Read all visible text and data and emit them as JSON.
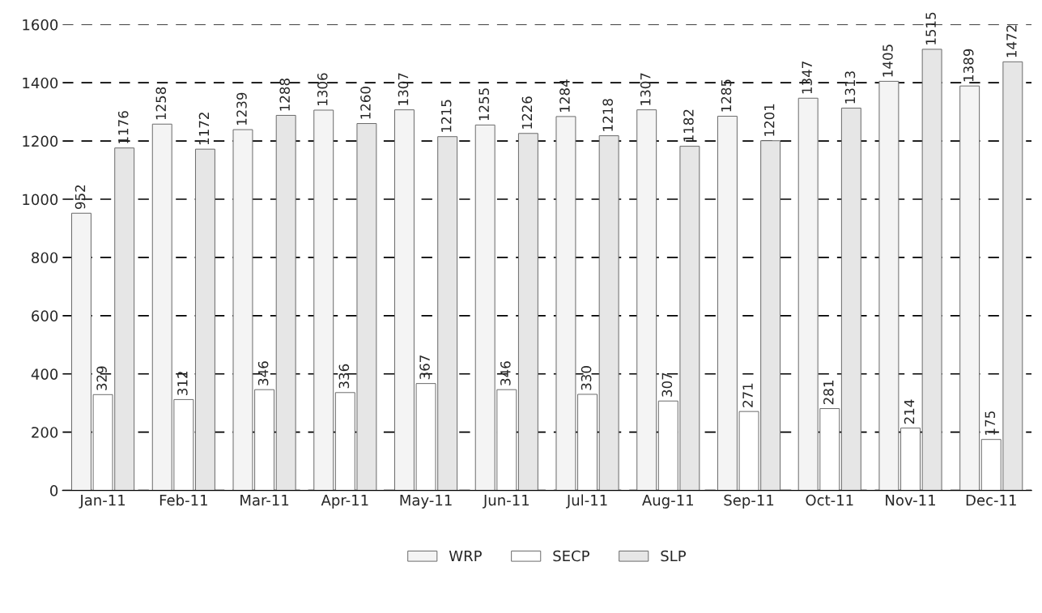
{
  "chart_data": {
    "type": "bar",
    "categories": [
      "Jan-11",
      "Feb-11",
      "Mar-11",
      "Apr-11",
      "May-11",
      "Jun-11",
      "Jul-11",
      "Aug-11",
      "Sep-11",
      "Oct-11",
      "Nov-11",
      "Dec-11"
    ],
    "series": [
      {
        "name": "WRP",
        "color": "#f4f4f4",
        "values": [
          952,
          1258,
          1239,
          1306,
          1307,
          1255,
          1284,
          1307,
          1285,
          1347,
          1405,
          1389
        ]
      },
      {
        "name": "SECP",
        "color": "#ffffff",
        "values": [
          329,
          312,
          346,
          336,
          367,
          346,
          330,
          307,
          271,
          281,
          214,
          175
        ]
      },
      {
        "name": "SLP",
        "color": "#e6e6e6",
        "values": [
          1176,
          1172,
          1288,
          1260,
          1215,
          1226,
          1218,
          1182,
          1201,
          1313,
          1515,
          1472
        ]
      }
    ],
    "ylim": [
      0,
      1600
    ],
    "yticks": [
      0,
      200,
      400,
      600,
      800,
      1000,
      1200,
      1400,
      1600
    ],
    "grid": "y",
    "legend": "bottom",
    "data_labels": true
  }
}
